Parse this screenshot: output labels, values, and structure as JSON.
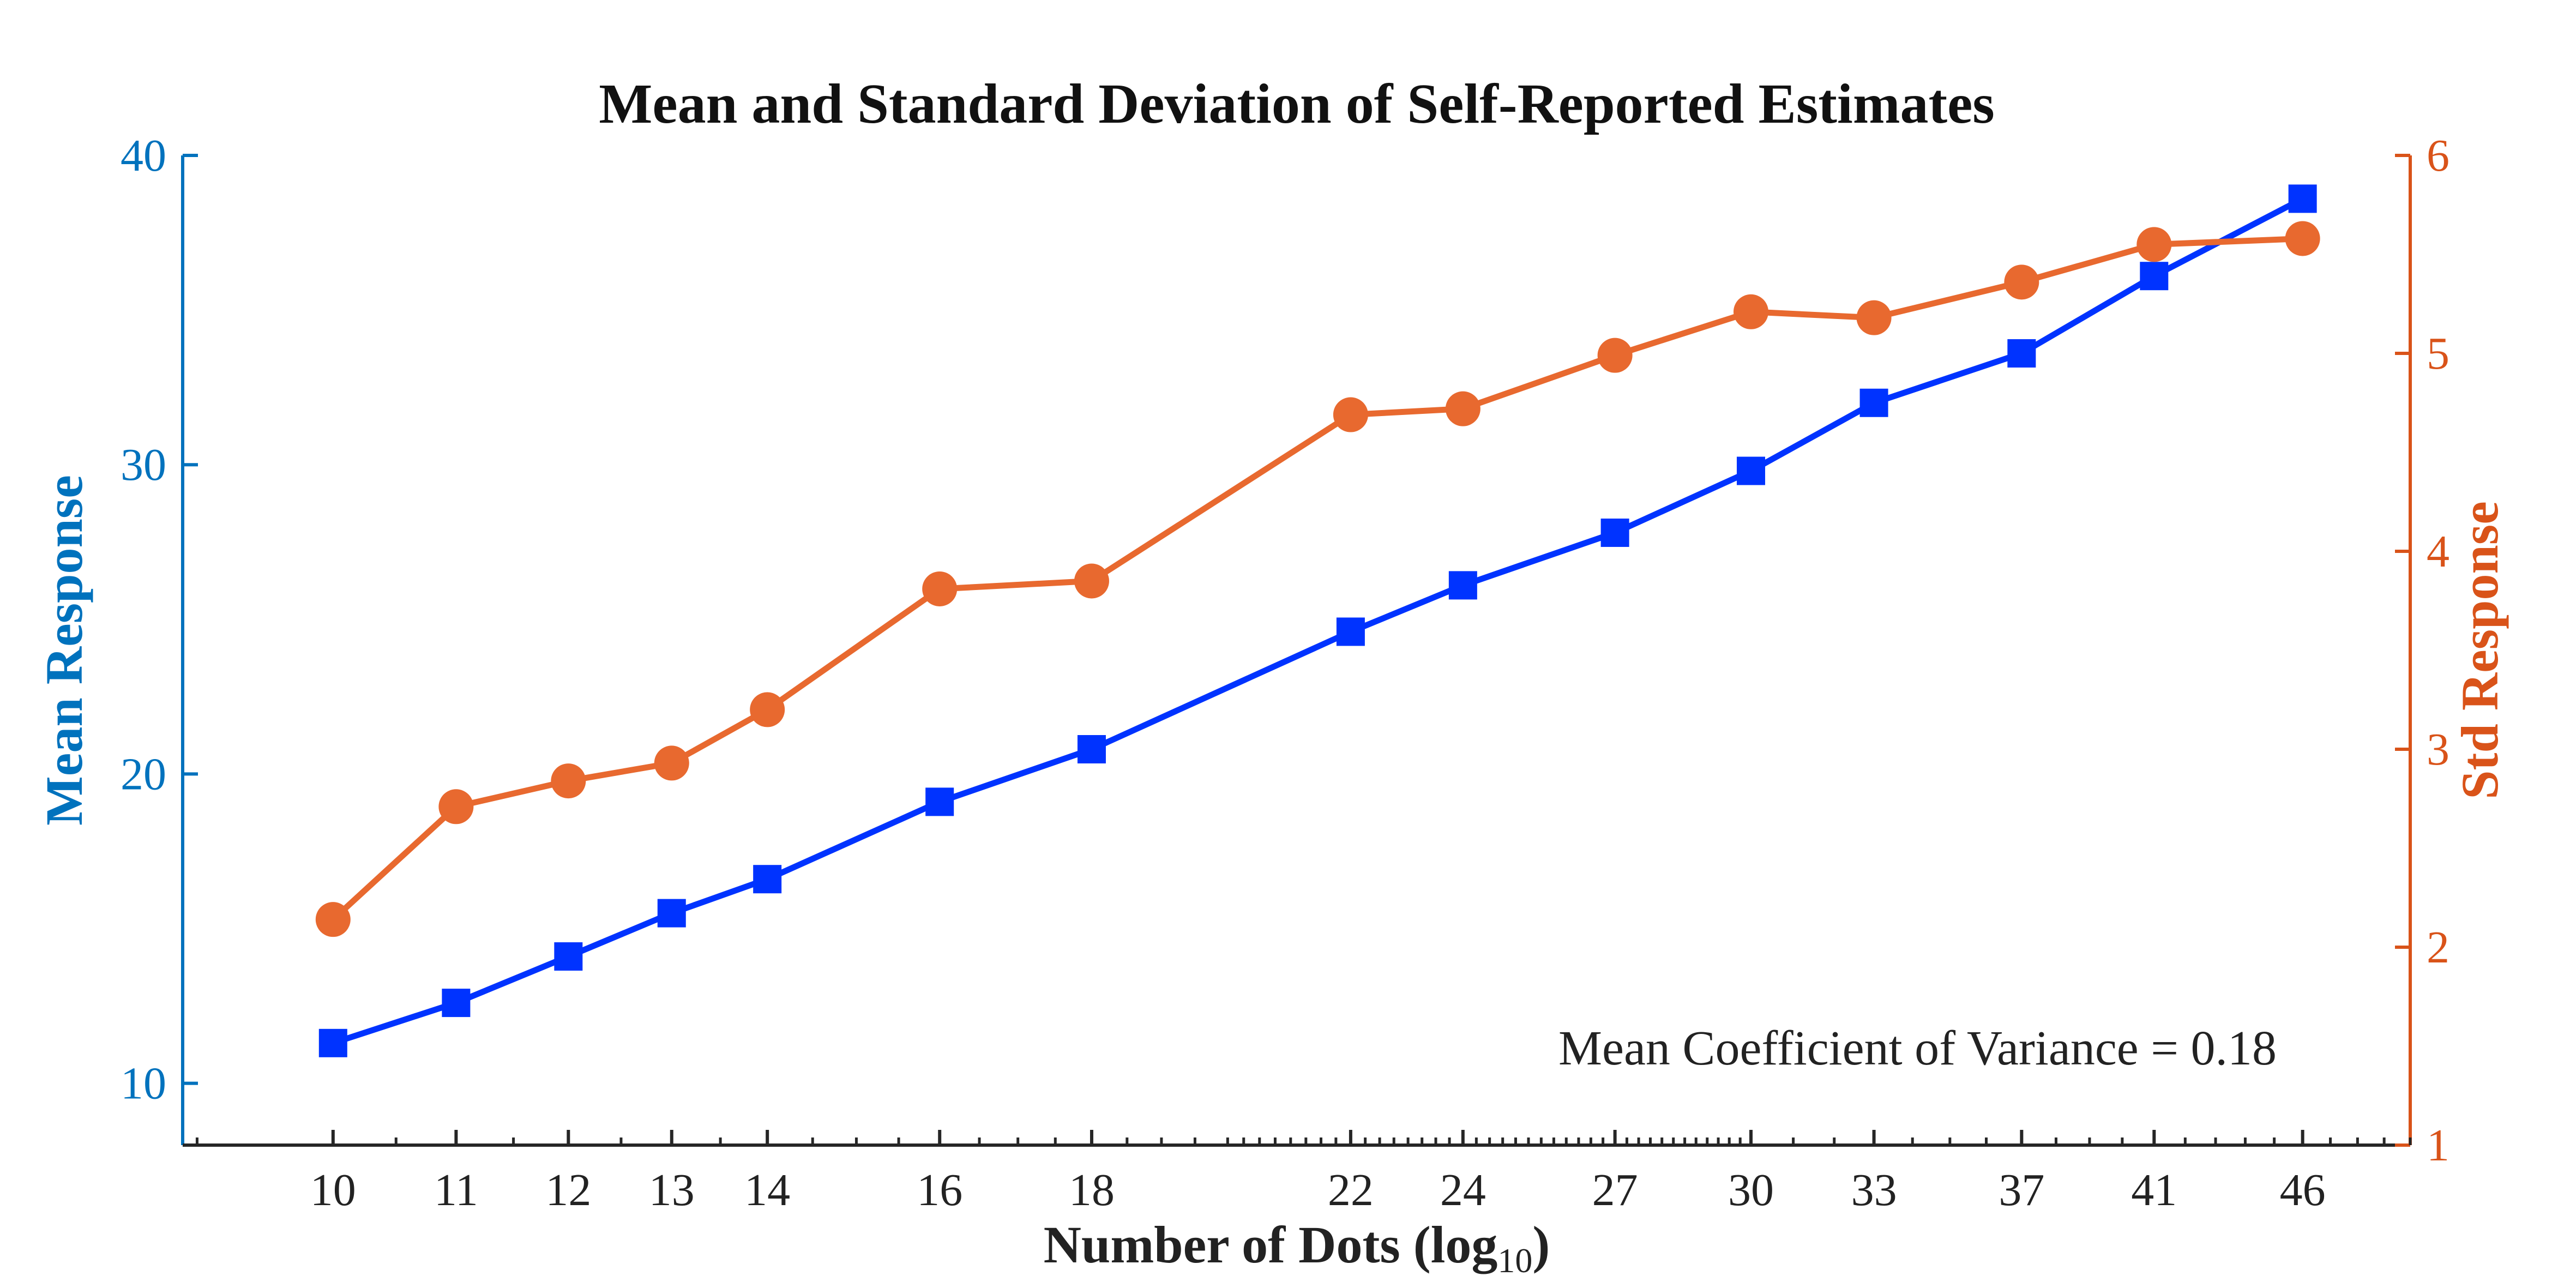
{
  "chart_data": {
    "type": "line",
    "title": "Mean and Standard Deviation of Self-Reported Estimates",
    "xlabel": "Number of Dots (log",
    "xlabel_subscript": "10",
    "xlabel_suffix": ")",
    "x_scale": "log",
    "xlim": [
      8.9,
      50.0
    ],
    "x_ticks": [
      10,
      11,
      12,
      13,
      14,
      16,
      18,
      22,
      24,
      27,
      30,
      33,
      37,
      41,
      46
    ],
    "x_tick_labels": [
      "10",
      "11",
      "12",
      "13",
      "14",
      "16",
      "18",
      "22",
      "24",
      "27",
      "30",
      "33",
      "37",
      "41",
      "46"
    ],
    "x": [
      10,
      11,
      12,
      13,
      14,
      16,
      18,
      22,
      24,
      27,
      30,
      33,
      37,
      41,
      46
    ],
    "y_left": {
      "label": "Mean Response",
      "lim": [
        8,
        40
      ],
      "ticks": [
        10,
        20,
        30,
        40
      ],
      "tick_labels": [
        "10",
        "20",
        "30",
        "40"
      ],
      "color": "#0072BD"
    },
    "y_right": {
      "label": "Std Response",
      "lim": [
        1,
        6
      ],
      "ticks": [
        1,
        2,
        3,
        4,
        5,
        6
      ],
      "tick_labels": [
        "1",
        "2",
        "3",
        "4",
        "5",
        "6"
      ],
      "color": "#D95319"
    },
    "series": [
      {
        "axis": "left",
        "marker": "square",
        "color": "#0033FF",
        "values": [
          11.3,
          12.6,
          14.1,
          15.5,
          16.6,
          19.1,
          20.8,
          24.6,
          26.1,
          27.8,
          29.8,
          32.0,
          33.6,
          36.1,
          38.6
        ]
      },
      {
        "axis": "right",
        "marker": "circle",
        "color": "#E8692F",
        "values": [
          2.14,
          2.71,
          2.84,
          2.93,
          3.2,
          3.81,
          3.85,
          4.69,
          4.72,
          4.99,
          5.21,
          5.18,
          5.36,
          5.55,
          5.58
        ]
      }
    ],
    "annotation": "Mean Coefficient of Variance = 0.18",
    "grid": false
  }
}
